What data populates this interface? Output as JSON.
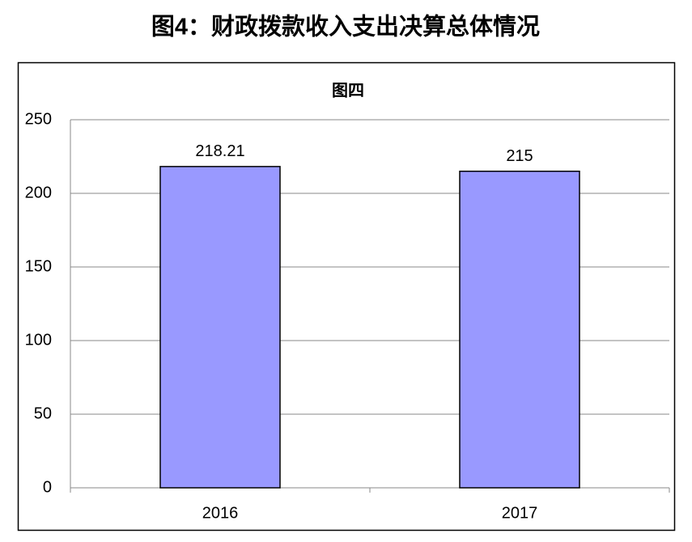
{
  "heading": "图4：财政拨款收入支出决算总体情况",
  "chart_data": {
    "type": "bar",
    "title": "图四",
    "categories": [
      "2016",
      "2017"
    ],
    "values": [
      218.21,
      215
    ],
    "color": "#9999ff",
    "ylim": [
      0,
      250
    ],
    "yticks": [
      0,
      50,
      100,
      150,
      200,
      250
    ],
    "grid": true
  }
}
